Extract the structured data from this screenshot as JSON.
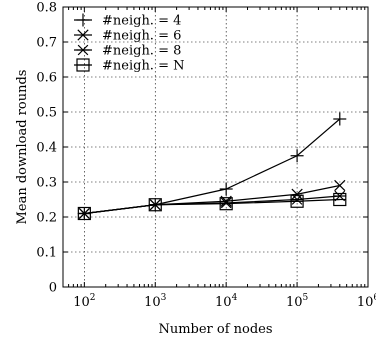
{
  "chart_data": {
    "type": "line",
    "xlabel": "Number of nodes",
    "ylabel": "Mean download rounds",
    "x_scale": "log",
    "xlim": [
      50,
      1000000
    ],
    "ylim": [
      0,
      0.8
    ],
    "x_ticks": [
      {
        "base": "10",
        "exp": "2"
      },
      {
        "base": "10",
        "exp": "3"
      },
      {
        "base": "10",
        "exp": "4"
      },
      {
        "base": "10",
        "exp": "5"
      },
      {
        "base": "10",
        "exp": "6"
      }
    ],
    "y_ticks": [
      "0",
      "0.1",
      "0.2",
      "0.3",
      "0.4",
      "0.5",
      "0.6",
      "0.7",
      "0.8"
    ],
    "grid": true,
    "legend_position": "top-left",
    "x": [
      100,
      1000,
      10000,
      100000,
      400000
    ],
    "series": [
      {
        "name": "#neigh. = 4",
        "marker": "plus",
        "values": [
          0.21,
          0.235,
          0.28,
          0.375,
          0.48
        ]
      },
      {
        "name": "#neigh. = 6",
        "marker": "cross",
        "values": [
          0.21,
          0.235,
          0.245,
          0.265,
          0.29
        ]
      },
      {
        "name": "#neigh. = 8",
        "marker": "asterisk",
        "values": [
          0.21,
          0.235,
          0.24,
          0.25,
          0.26
        ]
      },
      {
        "name": "#neigh. = N",
        "marker": "square",
        "values": [
          0.21,
          0.235,
          0.238,
          0.245,
          0.25
        ]
      }
    ]
  }
}
